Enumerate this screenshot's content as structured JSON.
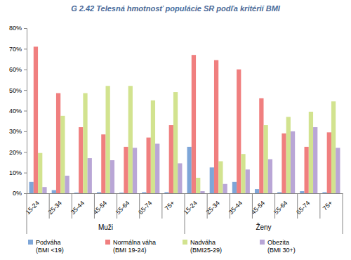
{
  "chart_data": {
    "type": "bar",
    "title": "G 2.42 Telesná hmotnosť populácie SR podľa kritérií BMI",
    "categories": [
      "15-24",
      "25-34",
      "35-44",
      "45-54",
      "55-64",
      "65-74",
      "75+",
      "15-24",
      "25-34",
      "35-44",
      "45-54",
      "55-64",
      "65-74",
      "75+"
    ],
    "category_groups": [
      "Muži",
      "Ženy"
    ],
    "series": [
      {
        "name": "Podváha (BMI <19)",
        "color": "#7ea6d8",
        "values": [
          5.5,
          1.5,
          0.3,
          0.5,
          0.3,
          0.5,
          0.5,
          22.5,
          12.5,
          5.5,
          2,
          0.5,
          1,
          0.5
        ]
      },
      {
        "name": "Normálna váha (BMI 19-24)",
        "color": "#f07f7f",
        "values": [
          71,
          48.5,
          32,
          28.5,
          22.5,
          27,
          33,
          67,
          64.5,
          60,
          46,
          29,
          22.5,
          29.5
        ]
      },
      {
        "name": "Nadváha (BMI25-29)",
        "color": "#d2e38f",
        "values": [
          19.5,
          37.5,
          48.5,
          52,
          52,
          45,
          49,
          7.5,
          15.5,
          19,
          33,
          37,
          39.5,
          44.5
        ]
      },
      {
        "name": "Obezita (BMI 30+)",
        "color": "#b9a6d6",
        "values": [
          3,
          8.5,
          17,
          16,
          22,
          24,
          14.5,
          1,
          4.5,
          11.5,
          16.5,
          30,
          32,
          22
        ]
      }
    ],
    "ylim": [
      0,
      80
    ],
    "yticks": [
      {
        "value": 0,
        "label": "0%"
      },
      {
        "value": 10,
        "label": "10%"
      },
      {
        "value": 20,
        "label": "20%"
      },
      {
        "value": 30,
        "label": "30%"
      },
      {
        "value": 40,
        "label": "40%"
      },
      {
        "value": 50,
        "label": "50%"
      },
      {
        "value": 60,
        "label": "60%"
      },
      {
        "value": 70,
        "label": "70%"
      },
      {
        "value": 80,
        "label": "80%"
      }
    ],
    "grid": false,
    "legend": "bottom"
  }
}
